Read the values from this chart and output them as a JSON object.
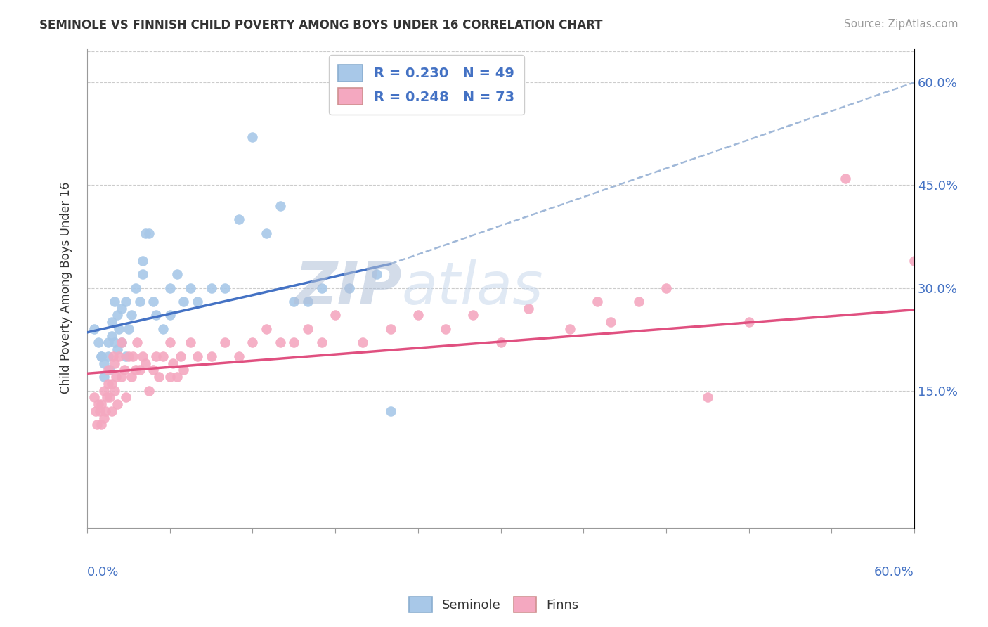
{
  "title": "SEMINOLE VS FINNISH CHILD POVERTY AMONG BOYS UNDER 16 CORRELATION CHART",
  "source": "Source: ZipAtlas.com",
  "ylabel": "Child Poverty Among Boys Under 16",
  "xmin": 0.0,
  "xmax": 0.6,
  "ymin": -0.05,
  "ymax": 0.65,
  "right_yticks": [
    0.15,
    0.3,
    0.45,
    0.6
  ],
  "right_yticklabels": [
    "15.0%",
    "30.0%",
    "45.0%",
    "60.0%"
  ],
  "seminole_R": 0.23,
  "seminole_N": 49,
  "finns_R": 0.248,
  "finns_N": 73,
  "seminole_color": "#a8c8e8",
  "finns_color": "#f4a8c0",
  "seminole_line_color": "#4472c4",
  "finns_line_color": "#e05080",
  "dashed_line_color": "#a0b8d8",
  "legend_text_color": "#4472c4",
  "watermark_color": "#c8d8ec",
  "seminole_line_x": [
    0.0,
    0.22
  ],
  "seminole_line_y": [
    0.235,
    0.335
  ],
  "finns_line_x": [
    0.0,
    0.6
  ],
  "finns_line_y": [
    0.175,
    0.268
  ],
  "dashed_line_x": [
    0.22,
    0.6
  ],
  "dashed_line_y": [
    0.335,
    0.6
  ],
  "seminole_points_x": [
    0.005,
    0.008,
    0.01,
    0.01,
    0.012,
    0.012,
    0.015,
    0.015,
    0.016,
    0.018,
    0.018,
    0.02,
    0.02,
    0.022,
    0.022,
    0.023,
    0.025,
    0.025,
    0.028,
    0.028,
    0.03,
    0.032,
    0.035,
    0.038,
    0.04,
    0.04,
    0.042,
    0.045,
    0.048,
    0.05,
    0.055,
    0.06,
    0.06,
    0.065,
    0.07,
    0.075,
    0.08,
    0.09,
    0.1,
    0.11,
    0.12,
    0.13,
    0.14,
    0.15,
    0.16,
    0.17,
    0.19,
    0.21,
    0.22
  ],
  "seminole_points_y": [
    0.24,
    0.22,
    0.2,
    0.2,
    0.17,
    0.19,
    0.22,
    0.2,
    0.18,
    0.23,
    0.25,
    0.22,
    0.28,
    0.21,
    0.26,
    0.24,
    0.22,
    0.27,
    0.2,
    0.28,
    0.24,
    0.26,
    0.3,
    0.28,
    0.32,
    0.34,
    0.38,
    0.38,
    0.28,
    0.26,
    0.24,
    0.26,
    0.3,
    0.32,
    0.28,
    0.3,
    0.28,
    0.3,
    0.3,
    0.4,
    0.52,
    0.38,
    0.42,
    0.28,
    0.28,
    0.3,
    0.3,
    0.32,
    0.12
  ],
  "finns_points_x": [
    0.005,
    0.006,
    0.007,
    0.008,
    0.009,
    0.01,
    0.01,
    0.012,
    0.012,
    0.013,
    0.014,
    0.015,
    0.015,
    0.016,
    0.018,
    0.018,
    0.019,
    0.02,
    0.02,
    0.021,
    0.022,
    0.023,
    0.025,
    0.025,
    0.027,
    0.028,
    0.03,
    0.032,
    0.033,
    0.035,
    0.036,
    0.038,
    0.04,
    0.042,
    0.045,
    0.048,
    0.05,
    0.052,
    0.055,
    0.06,
    0.06,
    0.062,
    0.065,
    0.068,
    0.07,
    0.075,
    0.08,
    0.09,
    0.1,
    0.11,
    0.12,
    0.13,
    0.14,
    0.15,
    0.16,
    0.17,
    0.18,
    0.2,
    0.22,
    0.24,
    0.26,
    0.28,
    0.3,
    0.32,
    0.35,
    0.37,
    0.38,
    0.4,
    0.42,
    0.45,
    0.48,
    0.55,
    0.6
  ],
  "finns_points_y": [
    0.14,
    0.12,
    0.1,
    0.13,
    0.12,
    0.1,
    0.13,
    0.11,
    0.15,
    0.12,
    0.14,
    0.16,
    0.18,
    0.14,
    0.12,
    0.16,
    0.2,
    0.15,
    0.19,
    0.17,
    0.13,
    0.2,
    0.17,
    0.22,
    0.18,
    0.14,
    0.2,
    0.17,
    0.2,
    0.18,
    0.22,
    0.18,
    0.2,
    0.19,
    0.15,
    0.18,
    0.2,
    0.17,
    0.2,
    0.17,
    0.22,
    0.19,
    0.17,
    0.2,
    0.18,
    0.22,
    0.2,
    0.2,
    0.22,
    0.2,
    0.22,
    0.24,
    0.22,
    0.22,
    0.24,
    0.22,
    0.26,
    0.22,
    0.24,
    0.26,
    0.24,
    0.26,
    0.22,
    0.27,
    0.24,
    0.28,
    0.25,
    0.28,
    0.3,
    0.14,
    0.25,
    0.46,
    0.34
  ]
}
